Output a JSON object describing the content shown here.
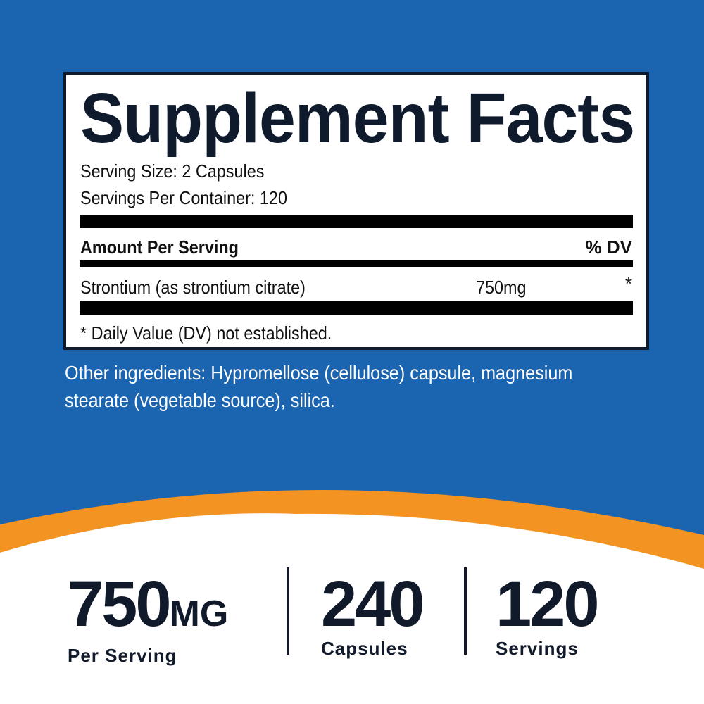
{
  "colors": {
    "background": "#1b64b0",
    "accent": "#f39322",
    "text_dark": "#0f1a2c",
    "white": "#ffffff"
  },
  "facts": {
    "title": "Supplement Facts",
    "serving_size": "Serving Size: 2 Capsules",
    "servings_per_container": "Servings Per Container: 120",
    "amount_header": "Amount Per Serving",
    "dv_header": "% DV",
    "ingredient": {
      "name": "Strontium (as strontium citrate)",
      "amount": "750mg",
      "dv": "*"
    },
    "footnote": "* Daily Value (DV) not established."
  },
  "other_ingredients": "Other ingredients: Hypromellose (cellulose) capsule, magnesium stearate (vegetable source), silica.",
  "stats": [
    {
      "value": "750",
      "unit": "MG",
      "label": "Per Serving"
    },
    {
      "value": "240",
      "label": "Capsules"
    },
    {
      "value": "120",
      "label": "Servings"
    }
  ]
}
